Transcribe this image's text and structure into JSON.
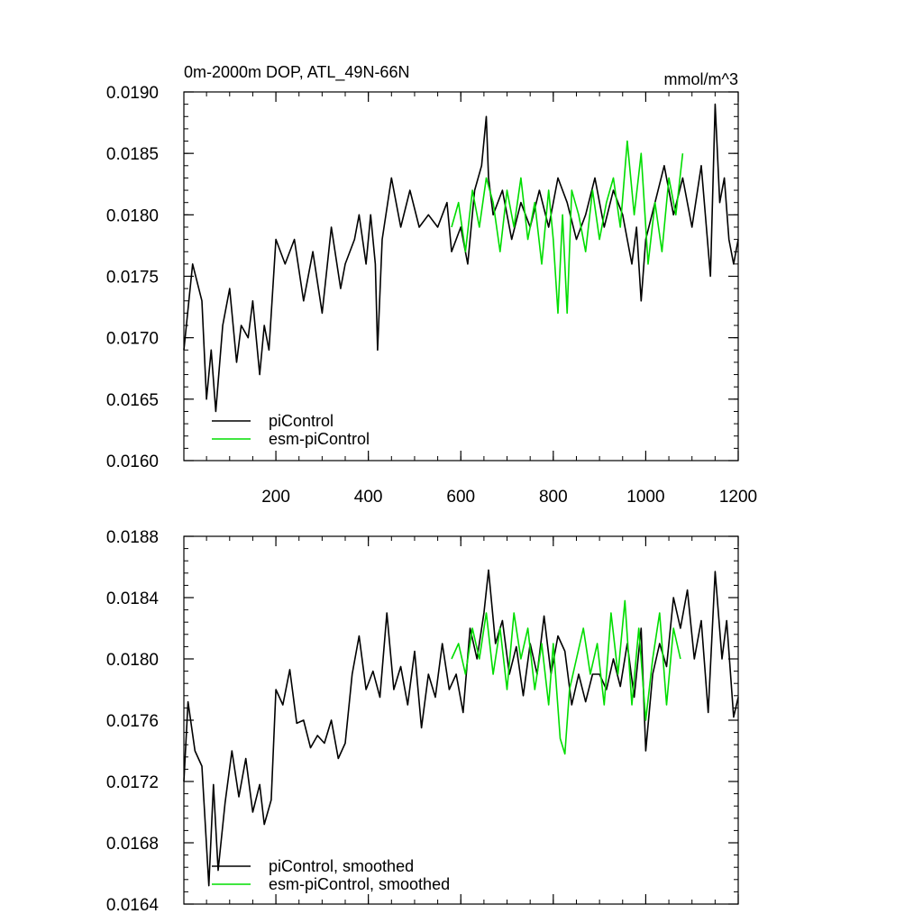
{
  "chart_data": [
    {
      "type": "line",
      "title": "0m-2000m DOP, ATL_49N-66N",
      "units": "mmol/m^3",
      "xlim": [
        1,
        1200
      ],
      "ylim": [
        0.016,
        0.019
      ],
      "xticks": [
        200,
        400,
        600,
        800,
        1000,
        1200
      ],
      "xtick_labels": [
        "200",
        "400",
        "600",
        "800",
        "1000",
        "1200"
      ],
      "yticks": [
        0.016,
        0.0165,
        0.017,
        0.0175,
        0.018,
        0.0185,
        0.019
      ],
      "ytick_labels": [
        "0.0160",
        "0.0165",
        "0.0170",
        "0.0175",
        "0.0180",
        "0.0185",
        "0.0190"
      ],
      "legend_position": "lower-left",
      "series": [
        {
          "name": "piControl",
          "color": "#000000",
          "x": [
            1,
            20,
            40,
            50,
            60,
            70,
            85,
            100,
            115,
            125,
            140,
            150,
            165,
            175,
            185,
            200,
            220,
            240,
            260,
            280,
            300,
            320,
            340,
            350,
            370,
            380,
            395,
            405,
            415,
            420,
            430,
            450,
            470,
            490,
            510,
            530,
            550,
            570,
            580,
            600,
            615,
            630,
            645,
            655,
            660,
            670,
            690,
            710,
            730,
            750,
            770,
            790,
            810,
            830,
            850,
            870,
            890,
            910,
            930,
            950,
            970,
            980,
            990,
            1000,
            1020,
            1040,
            1060,
            1080,
            1100,
            1120,
            1140,
            1150,
            1160,
            1170,
            1180,
            1190,
            1200
          ],
          "y": [
            0.0169,
            0.0176,
            0.0173,
            0.0165,
            0.0169,
            0.0164,
            0.0171,
            0.0174,
            0.0168,
            0.0171,
            0.017,
            0.0173,
            0.0167,
            0.0171,
            0.0169,
            0.0178,
            0.0176,
            0.0178,
            0.0173,
            0.0177,
            0.0172,
            0.0179,
            0.0174,
            0.0176,
            0.0178,
            0.018,
            0.0176,
            0.018,
            0.0176,
            0.0169,
            0.0178,
            0.0183,
            0.0179,
            0.0182,
            0.0179,
            0.018,
            0.0179,
            0.0181,
            0.0177,
            0.0179,
            0.0176,
            0.0182,
            0.0184,
            0.0188,
            0.0183,
            0.018,
            0.0182,
            0.0178,
            0.0181,
            0.0179,
            0.0182,
            0.0179,
            0.0183,
            0.0181,
            0.0178,
            0.018,
            0.0183,
            0.0179,
            0.0182,
            0.018,
            0.0176,
            0.0179,
            0.0173,
            0.0178,
            0.0181,
            0.0184,
            0.018,
            0.0183,
            0.0179,
            0.0184,
            0.0175,
            0.0189,
            0.0181,
            0.0183,
            0.0178,
            0.0176,
            0.0178
          ]
        },
        {
          "name": "esm-piControl",
          "color": "#00dd00",
          "x": [
            580,
            595,
            610,
            625,
            640,
            655,
            670,
            685,
            700,
            715,
            730,
            745,
            760,
            775,
            790,
            800,
            810,
            820,
            830,
            840,
            855,
            870,
            885,
            900,
            915,
            930,
            945,
            960,
            975,
            990,
            1005,
            1020,
            1035,
            1050,
            1065,
            1080
          ],
          "y": [
            0.0179,
            0.0181,
            0.0177,
            0.0182,
            0.0179,
            0.0183,
            0.0181,
            0.0177,
            0.0182,
            0.0179,
            0.0183,
            0.0178,
            0.0181,
            0.0176,
            0.0182,
            0.0178,
            0.0172,
            0.018,
            0.0172,
            0.0182,
            0.018,
            0.0177,
            0.0182,
            0.0178,
            0.0181,
            0.0183,
            0.0179,
            0.0186,
            0.018,
            0.0185,
            0.0176,
            0.0181,
            0.0177,
            0.0183,
            0.018,
            0.0185
          ]
        }
      ]
    },
    {
      "type": "line",
      "title": "",
      "xlim": [
        1,
        1200
      ],
      "ylim": [
        0.0164,
        0.0188
      ],
      "xticks": [
        200,
        400,
        600,
        800,
        1000,
        1200
      ],
      "xtick_labels": [],
      "yticks": [
        0.0164,
        0.0168,
        0.0172,
        0.0176,
        0.018,
        0.0184,
        0.0188
      ],
      "ytick_labels": [
        "0.0164",
        "0.0168",
        "0.0172",
        "0.0176",
        "0.0180",
        "0.0184",
        "0.0188"
      ],
      "legend_position": "lower-left",
      "series": [
        {
          "name": "piControl, smoothed",
          "color": "#000000",
          "x": [
            1,
            10,
            25,
            40,
            55,
            65,
            75,
            90,
            105,
            120,
            135,
            150,
            165,
            175,
            190,
            200,
            215,
            230,
            245,
            260,
            275,
            290,
            305,
            320,
            335,
            350,
            365,
            380,
            395,
            410,
            425,
            440,
            455,
            470,
            485,
            500,
            515,
            530,
            545,
            560,
            575,
            590,
            605,
            620,
            635,
            650,
            660,
            675,
            690,
            705,
            720,
            735,
            750,
            765,
            780,
            795,
            810,
            825,
            840,
            855,
            870,
            885,
            900,
            915,
            930,
            945,
            960,
            975,
            990,
            1000,
            1015,
            1030,
            1045,
            1060,
            1075,
            1090,
            1105,
            1120,
            1135,
            1150,
            1165,
            1175,
            1190,
            1200
          ],
          "y": [
            0.0172,
            0.01772,
            0.0174,
            0.0173,
            0.01652,
            0.01718,
            0.01662,
            0.01706,
            0.0174,
            0.0171,
            0.01735,
            0.017,
            0.01718,
            0.01692,
            0.01708,
            0.0178,
            0.0177,
            0.01793,
            0.01758,
            0.0176,
            0.01742,
            0.0175,
            0.01745,
            0.0176,
            0.01735,
            0.01745,
            0.0179,
            0.01815,
            0.0178,
            0.01792,
            0.01775,
            0.0183,
            0.0178,
            0.01795,
            0.0177,
            0.01805,
            0.01755,
            0.0179,
            0.01775,
            0.0181,
            0.0178,
            0.0179,
            0.01765,
            0.0182,
            0.018,
            0.0183,
            0.01858,
            0.0181,
            0.01825,
            0.0179,
            0.01808,
            0.01776,
            0.0181,
            0.0179,
            0.01828,
            0.0179,
            0.01815,
            0.01805,
            0.0177,
            0.0179,
            0.01772,
            0.0179,
            0.0179,
            0.0178,
            0.018,
            0.01782,
            0.0181,
            0.01775,
            0.0182,
            0.0174,
            0.0179,
            0.0181,
            0.01795,
            0.0184,
            0.0182,
            0.01845,
            0.018,
            0.01825,
            0.01765,
            0.01857,
            0.018,
            0.01825,
            0.01762,
            0.01775
          ]
        },
        {
          "name": "esm-piControl, smoothed",
          "color": "#00dd00",
          "x": [
            580,
            595,
            610,
            625,
            640,
            655,
            670,
            685,
            700,
            715,
            730,
            745,
            760,
            775,
            790,
            800,
            815,
            825,
            835,
            850,
            865,
            880,
            895,
            910,
            925,
            940,
            955,
            970,
            985,
            1000,
            1015,
            1030,
            1045,
            1060,
            1075
          ],
          "y": [
            0.018,
            0.0181,
            0.0179,
            0.0182,
            0.018,
            0.0183,
            0.0179,
            0.0182,
            0.0178,
            0.0183,
            0.018,
            0.0182,
            0.0178,
            0.0181,
            0.0177,
            0.0181,
            0.01748,
            0.01738,
            0.0178,
            0.018,
            0.0182,
            0.0179,
            0.0181,
            0.0177,
            0.0183,
            0.0179,
            0.01838,
            0.0177,
            0.0182,
            0.0176,
            0.018,
            0.0183,
            0.0177,
            0.0182,
            0.018
          ]
        }
      ]
    }
  ]
}
